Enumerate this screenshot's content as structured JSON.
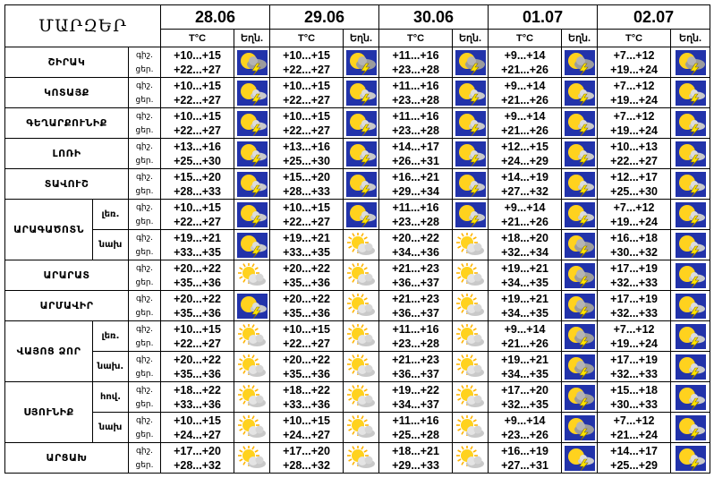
{
  "header": {
    "title": "ՄԱՐԶԵՐ",
    "dates": [
      "28.06",
      "29.06",
      "30.06",
      "01.07",
      "02.07"
    ],
    "temp_label": "T°C",
    "weather_label": "Եղն.",
    "day_label": "ցեր.",
    "night_label": "գիշ."
  },
  "rows": [
    {
      "region": "ՇԻՐԱԿ",
      "sub": "",
      "labels": [
        "գիշ.",
        "ցեր."
      ],
      "days": [
        {
          "n": "+10...+15",
          "d": "+22...+27",
          "icon": "thunder-cloud-sun"
        },
        {
          "n": "+10...+15",
          "d": "+22...+27",
          "icon": "thunder-cloud-sun"
        },
        {
          "n": "+11...+16",
          "d": "+23...+28",
          "icon": "thunder-cloud-sun"
        },
        {
          "n": "+9...+14",
          "d": "+21...+26",
          "icon": "thunder-cloud-sun"
        },
        {
          "n": "+7...+12",
          "d": "+19...+24",
          "icon": "thunder-cloud-sun"
        }
      ]
    },
    {
      "region": "ԿՈՏԱՅՔ",
      "sub": "",
      "labels": [
        "գիշ.",
        "ցեր."
      ],
      "days": [
        {
          "n": "+10...+15",
          "d": "+22...+27",
          "icon": "thunder-sun"
        },
        {
          "n": "+10...+15",
          "d": "+22...+27",
          "icon": "thunder-sun"
        },
        {
          "n": "+11...+16",
          "d": "+23...+28",
          "icon": "thunder-sun"
        },
        {
          "n": "+9...+14",
          "d": "+21...+26",
          "icon": "thunder-sun"
        },
        {
          "n": "+7...+12",
          "d": "+19...+24",
          "icon": "thunder-sun"
        }
      ]
    },
    {
      "region": "ԳԵՂԱՐՔՈՒՆԻՔ",
      "sub": "",
      "labels": [
        "գիշ.",
        "ցեր."
      ],
      "days": [
        {
          "n": "+10...+15",
          "d": "+22...+27",
          "icon": "thunder-sun"
        },
        {
          "n": "+10...+15",
          "d": "+22...+27",
          "icon": "thunder-sun"
        },
        {
          "n": "+11...+16",
          "d": "+23...+28",
          "icon": "thunder-sun"
        },
        {
          "n": "+9...+14",
          "d": "+21...+26",
          "icon": "thunder-sun"
        },
        {
          "n": "+7...+12",
          "d": "+19...+24",
          "icon": "thunder-sun"
        }
      ]
    },
    {
      "region": "ԼՈՌԻ",
      "sub": "",
      "labels": [
        "գիշ.",
        "ցեր."
      ],
      "days": [
        {
          "n": "+13...+16",
          "d": "+25...+30",
          "icon": "thunder-sun"
        },
        {
          "n": "+13...+16",
          "d": "+25...+30",
          "icon": "thunder-sun"
        },
        {
          "n": "+14...+17",
          "d": "+26...+31",
          "icon": "thunder-sun"
        },
        {
          "n": "+12...+15",
          "d": "+24...+29",
          "icon": "thunder-sun"
        },
        {
          "n": "+10...+13",
          "d": "+22...+27",
          "icon": "thunder-sun"
        }
      ]
    },
    {
      "region": "ՏԱՎՈՒՇ",
      "sub": "",
      "labels": [
        "գիշ.",
        "ցեր."
      ],
      "days": [
        {
          "n": "+15...+20",
          "d": "+28...+33",
          "icon": "thunder-sun"
        },
        {
          "n": "+15...+20",
          "d": "+28...+33",
          "icon": "thunder-sun"
        },
        {
          "n": "+16...+21",
          "d": "+29...+34",
          "icon": "thunder-sun"
        },
        {
          "n": "+14...+19",
          "d": "+27...+32",
          "icon": "thunder-sun"
        },
        {
          "n": "+12...+17",
          "d": "+25...+30",
          "icon": "thunder-sun"
        }
      ]
    },
    {
      "region": "ԱՐԱԳԱԾՈՏՆ",
      "sub": "լեռ.",
      "labels": [
        "գիշ.",
        "ցեր."
      ],
      "days": [
        {
          "n": "+10...+15",
          "d": "+22...+27",
          "icon": "thunder-sun"
        },
        {
          "n": "+10...+15",
          "d": "+22...+27",
          "icon": "thunder-sun"
        },
        {
          "n": "+11...+16",
          "d": "+23...+28",
          "icon": "thunder-sun"
        },
        {
          "n": "+9...+14",
          "d": "+21...+26",
          "icon": "thunder-sun"
        },
        {
          "n": "+7...+12",
          "d": "+19...+24",
          "icon": "thunder-sun"
        }
      ]
    },
    {
      "region": "",
      "sub": "նախ",
      "labels": [
        "գիշ.",
        "ցեր."
      ],
      "days": [
        {
          "n": "+19...+21",
          "d": "+33...+35",
          "icon": "thunder-sun"
        },
        {
          "n": "+19...+21",
          "d": "+33...+35",
          "icon": "sun-cloud"
        },
        {
          "n": "+20...+22",
          "d": "+34...+36",
          "icon": "sun-cloud"
        },
        {
          "n": "+18...+20",
          "d": "+32...+34",
          "icon": "thunder-cloud-sun"
        },
        {
          "n": "+16...+18",
          "d": "+30...+32",
          "icon": "thunder-sun"
        }
      ]
    },
    {
      "region": "ԱՐԱՐԱՏ",
      "sub": "",
      "labels": [
        "գիշ.",
        "ցեր."
      ],
      "days": [
        {
          "n": "+20...+22",
          "d": "+35...+36",
          "icon": "sun-cloud"
        },
        {
          "n": "+20...+22",
          "d": "+35...+36",
          "icon": "sun-cloud"
        },
        {
          "n": "+21...+23",
          "d": "+36...+37",
          "icon": "sun-cloud"
        },
        {
          "n": "+19...+21",
          "d": "+34...+35",
          "icon": "thunder-cloud-sun"
        },
        {
          "n": "+17...+19",
          "d": "+32...+33",
          "icon": "thunder-sun"
        }
      ]
    },
    {
      "region": "ԱՐՄԱՎԻՐ",
      "sub": "",
      "labels": [
        "գիշ.",
        "ցեր."
      ],
      "days": [
        {
          "n": "+20...+22",
          "d": "+35...+36",
          "icon": "thunder-sun"
        },
        {
          "n": "+20...+22",
          "d": "+35...+36",
          "icon": "sun-cloud"
        },
        {
          "n": "+21...+23",
          "d": "+36...+37",
          "icon": "sun-cloud"
        },
        {
          "n": "+19...+21",
          "d": "+34...+35",
          "icon": "thunder-cloud-sun"
        },
        {
          "n": "+17...+19",
          "d": "+32...+33",
          "icon": "thunder-sun"
        }
      ]
    },
    {
      "region": "ՎԱՅՈՑ ՁՈՐ",
      "sub": "լեռ.",
      "labels": [
        "գիշ.",
        "ցեր."
      ],
      "days": [
        {
          "n": "+10...+15",
          "d": "+22...+27",
          "icon": "sun-cloud"
        },
        {
          "n": "+10...+15",
          "d": "+22...+27",
          "icon": "sun-cloud"
        },
        {
          "n": "+11...+16",
          "d": "+23...+28",
          "icon": "sun-cloud"
        },
        {
          "n": "+9...+14",
          "d": "+21...+26",
          "icon": "thunder-cloud-sun"
        },
        {
          "n": "+7...+12",
          "d": "+19...+24",
          "icon": "thunder-sun"
        }
      ]
    },
    {
      "region": "",
      "sub": "նախ.",
      "labels": [
        "գիշ.",
        "ցեր."
      ],
      "days": [
        {
          "n": "+20...+22",
          "d": "+35...+36",
          "icon": "sun-cloud"
        },
        {
          "n": "+20...+22",
          "d": "+35...+36",
          "icon": "sun-cloud"
        },
        {
          "n": "+21...+23",
          "d": "+36...+37",
          "icon": "sun-cloud"
        },
        {
          "n": "+19...+21",
          "d": "+34...+35",
          "icon": "thunder-cloud-sun"
        },
        {
          "n": "+17...+19",
          "d": "+32...+33",
          "icon": "thunder-sun"
        }
      ]
    },
    {
      "region": "ՍՅՈՒՆԻՔ",
      "sub": "հով.",
      "labels": [
        "գիշ.",
        "ցեր."
      ],
      "days": [
        {
          "n": "+18...+22",
          "d": "+33...+36",
          "icon": "sun-cloud"
        },
        {
          "n": "+18...+22",
          "d": "+33...+36",
          "icon": "sun-cloud"
        },
        {
          "n": "+19...+22",
          "d": "+34...+37",
          "icon": "sun-cloud"
        },
        {
          "n": "+17...+20",
          "d": "+32...+35",
          "icon": "thunder-cloud-sun"
        },
        {
          "n": "+15...+18",
          "d": "+30...+33",
          "icon": "thunder-sun"
        }
      ]
    },
    {
      "region": "",
      "sub": "նախ",
      "labels": [
        "գիշ.",
        "ցեր."
      ],
      "days": [
        {
          "n": "+10...+15",
          "d": "+24...+27",
          "icon": "sun-cloud"
        },
        {
          "n": "+10...+15",
          "d": "+24...+27",
          "icon": "sun-cloud"
        },
        {
          "n": "+11...+16",
          "d": "+25...+28",
          "icon": "sun-cloud"
        },
        {
          "n": "+9...+14",
          "d": "+23...+26",
          "icon": "thunder-cloud-sun"
        },
        {
          "n": "+7...+12",
          "d": "+21...+24",
          "icon": "thunder-sun"
        }
      ]
    },
    {
      "region": "ԱՐՑԱԽ",
      "sub": "",
      "labels": [
        "գիշ.",
        "ցեր."
      ],
      "days": [
        {
          "n": "+17...+20",
          "d": "+28...+32",
          "icon": "sun-cloud"
        },
        {
          "n": "+17...+20",
          "d": "+28...+32",
          "icon": "sun-cloud"
        },
        {
          "n": "+18...+21",
          "d": "+29...+33",
          "icon": "sun-cloud"
        },
        {
          "n": "+16...+19",
          "d": "+27...+31",
          "icon": "thunder-sun"
        },
        {
          "n": "+14...+17",
          "d": "+25...+29",
          "icon": "thunder-sun"
        }
      ]
    }
  ],
  "colors": {
    "tile_bg": "#2233aa",
    "sun": "#ffd21e",
    "cloud": "#c9c9c9",
    "bolt": "#ffe600"
  }
}
